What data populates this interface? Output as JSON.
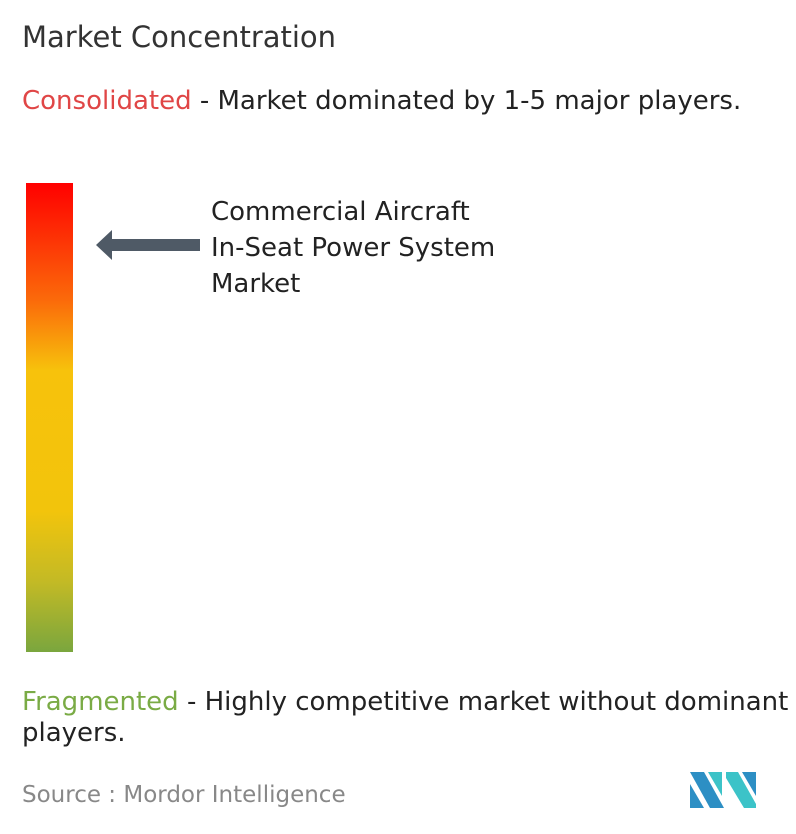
{
  "title": "Market Concentration",
  "consolidated": {
    "label": "Consolidated",
    "text": " - Market dominated by 1-5 major players."
  },
  "fragmented": {
    "label": "Fragmented",
    "text": " - Highly competitive market without dominant players."
  },
  "market": {
    "line1": "Commercial Aircraft",
    "line2": "In-Seat Power System",
    "line3": "Market"
  },
  "source": "Source :  Mordor Intelligence",
  "colors": {
    "consolidated": "#e04646",
    "fragmented": "#7aab45",
    "arrow": "#4f5a66",
    "logo_dark": "#2d8fc4",
    "logo_light": "#3cc3c8"
  },
  "arrow_position": "near top (highly consolidated)"
}
